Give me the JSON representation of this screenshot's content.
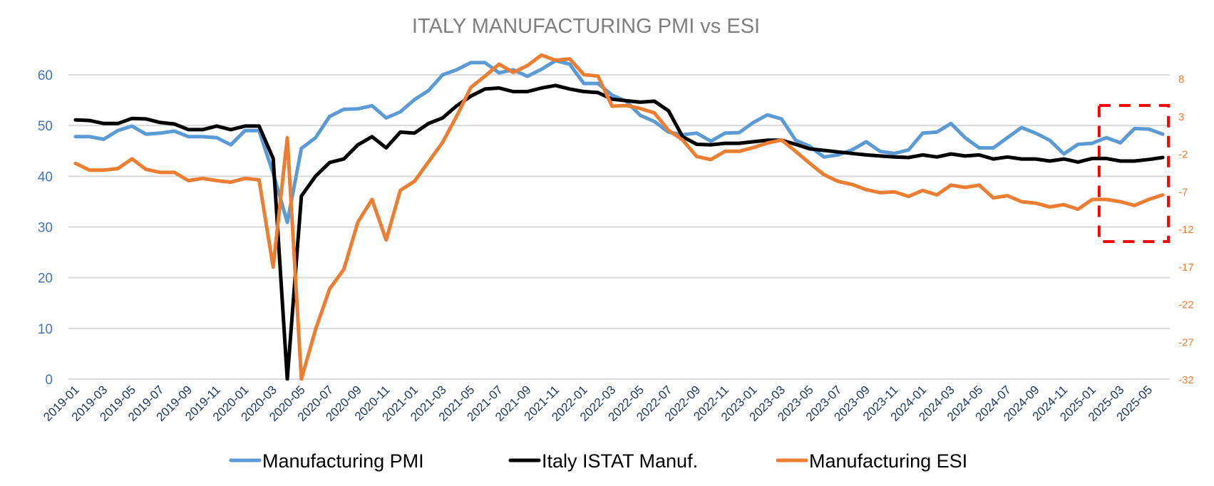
{
  "chart_data": {
    "type": "line",
    "title": "ITALY  MANUFACTURING PMI vs ESI",
    "xlabel": "",
    "ylabel_left": "",
    "ylabel_right": "",
    "ylim_left": [
      0,
      60
    ],
    "ylim_right": [
      -32,
      8
    ],
    "yticks_left": [
      "0",
      "10",
      "20",
      "30",
      "40",
      "50",
      "60"
    ],
    "yticks_right": [
      "-32",
      "-27",
      "-22",
      "-17",
      "-12",
      "-7",
      "-2",
      "3",
      "8"
    ],
    "grid": true,
    "legend_position": "bottom",
    "x": [
      "2019-01",
      "2019-02",
      "2019-03",
      "2019-04",
      "2019-05",
      "2019-06",
      "2019-07",
      "2019-08",
      "2019-09",
      "2019-10",
      "2019-11",
      "2019-12",
      "2020-01",
      "2020-02",
      "2020-03",
      "2020-04",
      "2020-05",
      "2020-06",
      "2020-07",
      "2020-08",
      "2020-09",
      "2020-10",
      "2020-11",
      "2020-12",
      "2021-01",
      "2021-02",
      "2021-03",
      "2021-04",
      "2021-05",
      "2021-06",
      "2021-07",
      "2021-08",
      "2021-09",
      "2021-10",
      "2021-11",
      "2021-12",
      "2022-01",
      "2022-02",
      "2022-03",
      "2022-04",
      "2022-05",
      "2022-06",
      "2022-07",
      "2022-08",
      "2022-09",
      "2022-10",
      "2022-11",
      "2022-12",
      "2023-01",
      "2023-02",
      "2023-03",
      "2023-04",
      "2023-05",
      "2023-06",
      "2023-07",
      "2023-08",
      "2023-09",
      "2023-10",
      "2023-11",
      "2023-12",
      "2024-01",
      "2024-02",
      "2024-03",
      "2024-04",
      "2024-05",
      "2024-06",
      "2024-07",
      "2024-08",
      "2024-09",
      "2024-10",
      "2024-11",
      "2024-12",
      "2025-01",
      "2025-02",
      "2025-03",
      "2025-04",
      "2025-05",
      "2025-06"
    ],
    "xtick_labels": [
      "2019-01",
      "2019-03",
      "2019-05",
      "2019-07",
      "2019-09",
      "2019-11",
      "2020-01",
      "2020-03",
      "2020-05",
      "2020-07",
      "2020-09",
      "2020-11",
      "2021-01",
      "2021-03",
      "2021-05",
      "2021-07",
      "2021-09",
      "2021-11",
      "2022-01",
      "2022-03",
      "2022-05",
      "2022-07",
      "2022-09",
      "2022-11",
      "2023-01",
      "2023-03",
      "2023-05",
      "2023-07",
      "2023-09",
      "2023-11",
      "2024-01",
      "2024-03",
      "2024-05",
      "2024-07",
      "2024-09",
      "2024-11",
      "2025-01",
      "2025-03",
      "2025-05"
    ],
    "series": [
      {
        "name": "Manufacturing PMI",
        "axis": "left",
        "color": "#5b9bd5",
        "values": [
          47.8,
          47.8,
          47.3,
          49.0,
          49.9,
          48.3,
          48.5,
          48.9,
          47.8,
          47.8,
          47.6,
          46.2,
          49.0,
          49.0,
          40.6,
          30.9,
          45.5,
          47.6,
          51.8,
          53.2,
          53.3,
          53.9,
          51.5,
          52.7,
          55.1,
          56.9,
          60.0,
          61.0,
          62.4,
          62.4,
          60.4,
          61.0,
          59.7,
          61.1,
          62.8,
          62.1,
          58.3,
          58.3,
          56.0,
          54.8,
          52.0,
          50.8,
          48.7,
          48.2,
          48.5,
          46.9,
          48.5,
          48.6,
          50.6,
          52.1,
          51.3,
          47.1,
          45.9,
          43.8,
          44.2,
          45.2,
          46.8,
          44.9,
          44.5,
          45.2,
          48.5,
          48.7,
          50.4,
          47.6,
          45.6,
          45.6,
          47.6,
          49.6,
          48.5,
          47.1,
          44.4,
          46.3,
          46.5,
          47.6,
          46.6,
          49.4,
          49.3,
          48.3
        ]
      },
      {
        "name": "Italy ISTAT Manuf.",
        "axis": "left",
        "color": "#000000",
        "values": [
          51.1,
          51.0,
          50.4,
          50.4,
          51.4,
          51.3,
          50.6,
          50.3,
          49.2,
          49.2,
          49.9,
          49.2,
          49.9,
          49.9,
          43.5,
          0.0,
          36.1,
          40.0,
          42.7,
          43.4,
          46.2,
          47.8,
          45.6,
          48.7,
          48.5,
          50.4,
          51.5,
          53.9,
          55.8,
          57.2,
          57.4,
          56.7,
          56.7,
          57.4,
          57.9,
          57.2,
          56.7,
          56.5,
          55.2,
          54.9,
          54.6,
          54.8,
          52.9,
          47.8,
          46.3,
          46.2,
          46.5,
          46.5,
          46.8,
          47.1,
          47.1,
          46.3,
          45.4,
          45.1,
          44.8,
          44.5,
          44.2,
          44.0,
          43.8,
          43.7,
          44.2,
          43.8,
          44.4,
          44.0,
          44.2,
          43.4,
          43.8,
          43.4,
          43.4,
          43.0,
          43.4,
          42.8,
          43.5,
          43.5,
          43.0,
          43.0,
          43.3,
          43.7
        ]
      },
      {
        "name": "Manufacturing ESI",
        "axis": "right",
        "color": "#ed7d31",
        "values": [
          -3.3,
          -4.2,
          -4.2,
          -4.0,
          -2.7,
          -4.1,
          -4.5,
          -4.5,
          -5.6,
          -5.3,
          -5.6,
          -5.8,
          -5.3,
          -5.5,
          -17.1,
          0.1,
          -32.0,
          -25.4,
          -20.0,
          -17.4,
          -11.1,
          -8.1,
          -13.5,
          -6.9,
          -5.7,
          -3.1,
          -0.5,
          3.0,
          6.8,
          8.3,
          9.9,
          8.8,
          9.7,
          11.1,
          10.4,
          10.6,
          8.5,
          8.3,
          4.3,
          4.4,
          4.0,
          3.4,
          1.1,
          -0.2,
          -2.4,
          -2.8,
          -1.7,
          -1.7,
          -1.2,
          -0.6,
          -0.2,
          -1.7,
          -3.3,
          -4.8,
          -5.7,
          -6.1,
          -6.8,
          -7.2,
          -7.1,
          -7.7,
          -6.9,
          -7.5,
          -6.2,
          -6.5,
          -6.2,
          -7.9,
          -7.6,
          -8.4,
          -8.6,
          -9.1,
          -8.8,
          -9.4,
          -8.1,
          -8.1,
          -8.4,
          -8.9,
          -8.1,
          -7.5
        ]
      }
    ],
    "annotations": [
      {
        "type": "dashed-box",
        "color": "#ff0000",
        "x_from": "2025-02",
        "x_to": "2025-06",
        "label": ""
      }
    ]
  },
  "legend": {
    "items": [
      {
        "label": "Manufacturing PMI",
        "color": "#5b9bd5"
      },
      {
        "label": "Italy ISTAT Manuf.",
        "color": "#000000"
      },
      {
        "label": "Manufacturing ESI",
        "color": "#ed7d31"
      }
    ]
  }
}
